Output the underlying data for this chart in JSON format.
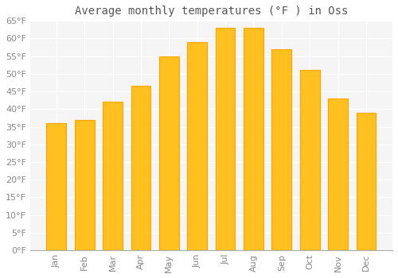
{
  "title": "Average monthly temperatures (°F ) in Oss",
  "months": [
    "Jan",
    "Feb",
    "Mar",
    "Apr",
    "May",
    "Jun",
    "Jul",
    "Aug",
    "Sep",
    "Oct",
    "Nov",
    "Dec"
  ],
  "values": [
    36,
    37,
    42,
    46.5,
    55,
    59,
    63,
    63,
    57,
    51,
    43,
    39
  ],
  "bar_color": "#FFC020",
  "bar_edge_color": "#FFA500",
  "background_color": "#FFFFFF",
  "plot_bg_color": "#F5F5F5",
  "grid_color": "#FFFFFF",
  "ylim": [
    0,
    65
  ],
  "yticks": [
    0,
    5,
    10,
    15,
    20,
    25,
    30,
    35,
    40,
    45,
    50,
    55,
    60,
    65
  ],
  "title_fontsize": 10,
  "tick_fontsize": 8,
  "title_color": "#555555",
  "tick_color": "#888888"
}
